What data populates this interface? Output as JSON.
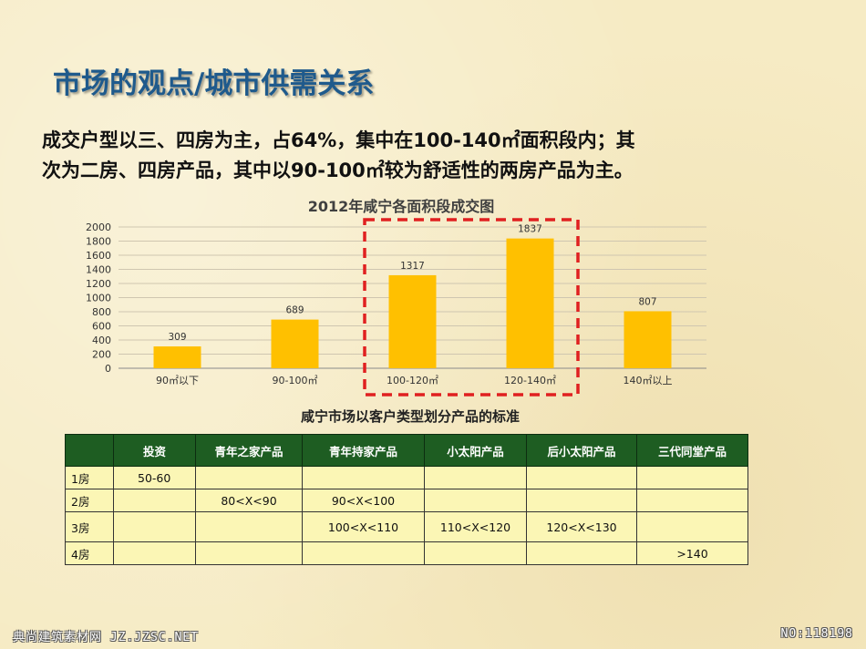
{
  "title": "市场的观点/城市供需关系",
  "summary": {
    "line1": "成交户型以三、四房为主，占64%，集中在100-140㎡面积段内；其",
    "line2": "次为二房、四房产品，其中以90-100㎡较为舒适性的两房产品为主。"
  },
  "chart_data": {
    "type": "bar",
    "title": "2012年咸宁各面积段成交图",
    "categories": [
      "90㎡以下",
      "90-100㎡",
      "100-120㎡",
      "120-140㎡",
      "140㎡以上"
    ],
    "values": [
      309,
      689,
      1317,
      1837,
      807
    ],
    "ylim": [
      0,
      2000
    ],
    "yticks": [
      "0",
      "200",
      "400",
      "600",
      "800",
      "1000",
      "1200",
      "1400",
      "1600",
      "1800",
      "2000"
    ],
    "bar_color": "#ffc000",
    "grid": true,
    "legend": "none",
    "highlight_categories": [
      "100-120㎡",
      "120-140㎡"
    ],
    "highlight_color": "#e02020"
  },
  "table": {
    "caption": "咸宁市场以客户类型划分产品的标准",
    "header_color": "#1e5d22",
    "cell_color": "#fbf6b5",
    "columns": [
      "",
      "投资",
      "青年之家产品",
      "青年持家产品",
      "小太阳产品",
      "后小太阳产品",
      "三代同堂产品"
    ],
    "rows": [
      [
        "1房",
        "50-60",
        "",
        "",
        "",
        "",
        ""
      ],
      [
        "2房",
        "",
        "80<X<90",
        "90<X<100",
        "",
        "",
        ""
      ],
      [
        "3房",
        "",
        "",
        "100<X<110",
        "110<X<120",
        "120<X<130",
        ""
      ],
      [
        "4房",
        "",
        "",
        "",
        "",
        "",
        ">140"
      ]
    ]
  },
  "watermark": {
    "left": "典尚建筑素材网 JZ.JZSC.NET",
    "right": "NO:118198"
  }
}
